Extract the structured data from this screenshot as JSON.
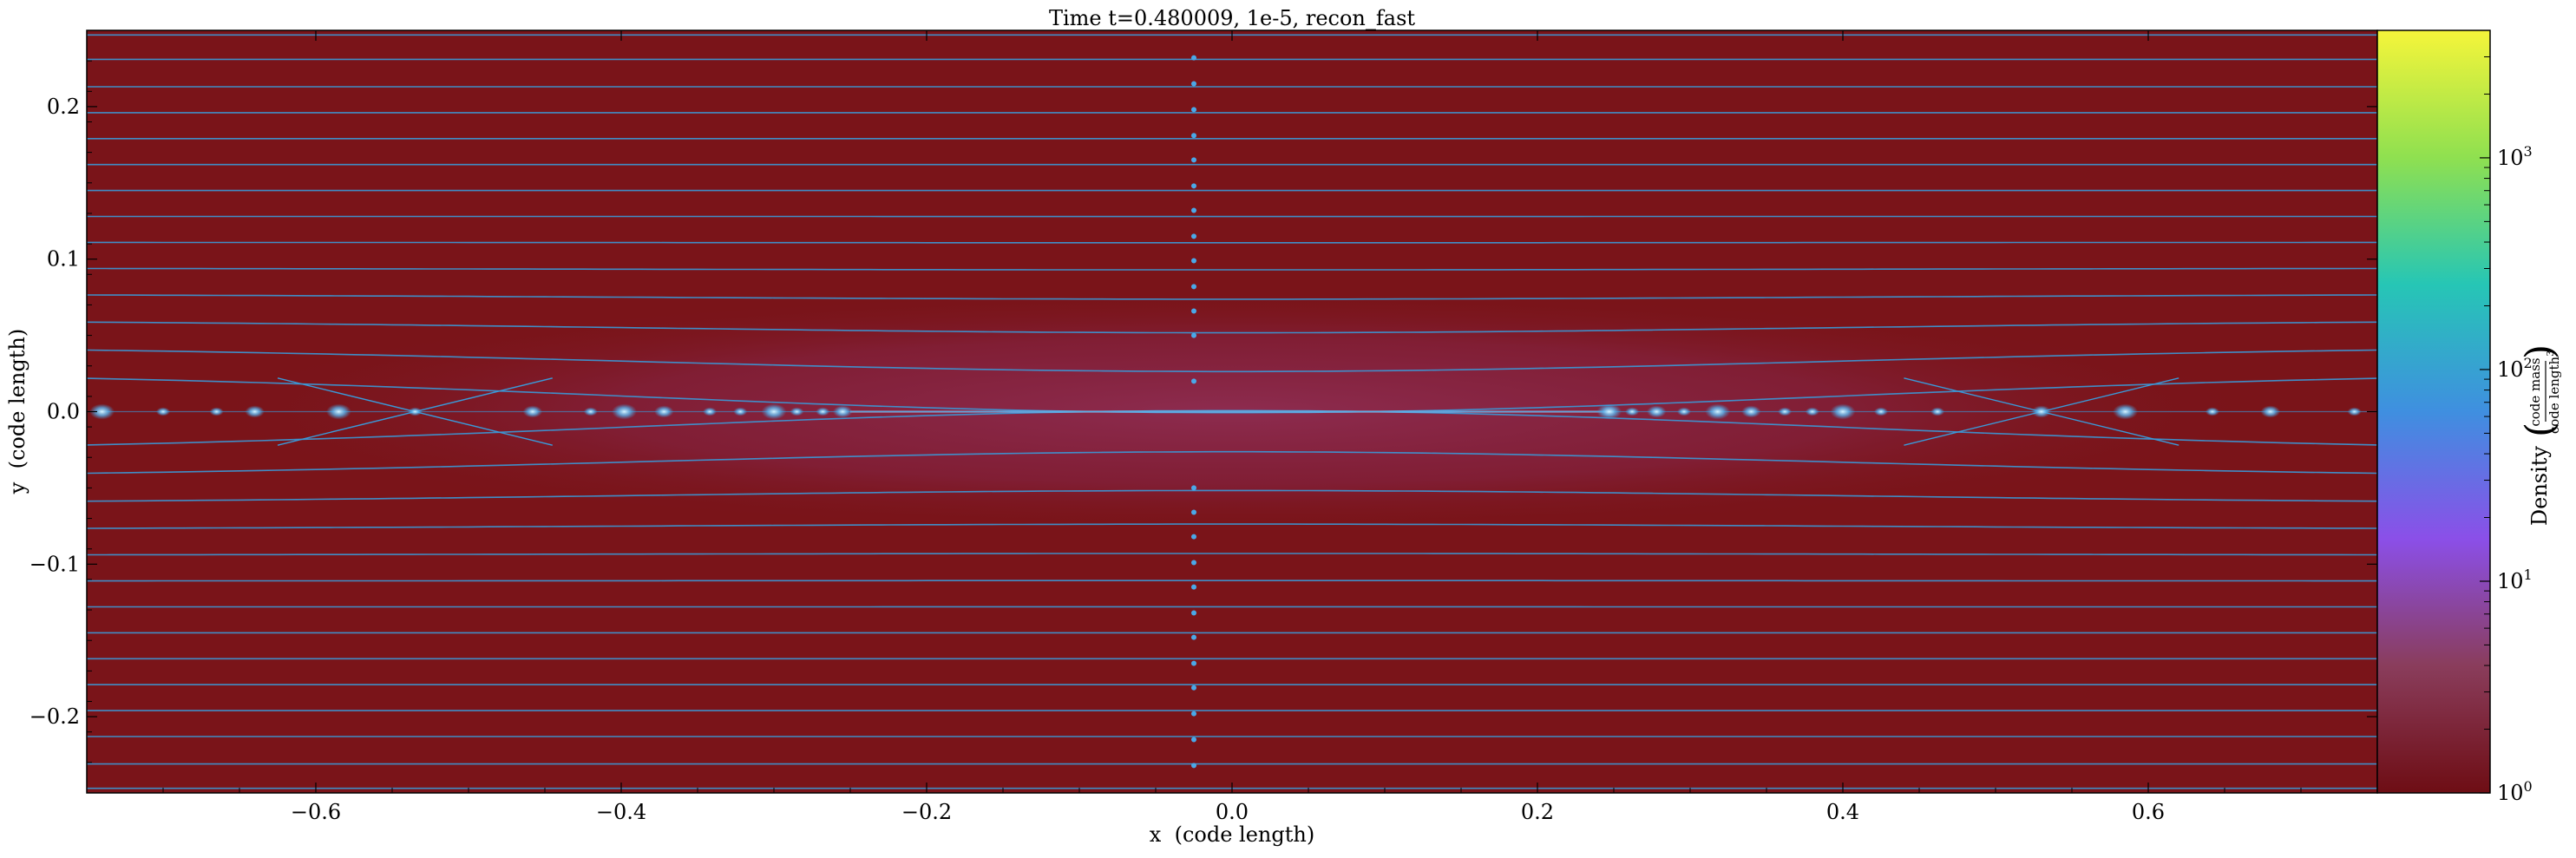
{
  "chart_data": {
    "type": "heatmap",
    "title": "Time t=0.480009, 1e-5, recon_fast",
    "xlabel": "x  (code length)",
    "ylabel": "y  (code length)",
    "xlim": [
      -0.75,
      0.75
    ],
    "ylim": [
      -0.25,
      0.25
    ],
    "xticks": [
      -0.6,
      -0.4,
      -0.2,
      0.0,
      0.2,
      0.4,
      0.6
    ],
    "xtick_labels": [
      "−0.6",
      "−0.4",
      "−0.2",
      "0.0",
      "0.2",
      "0.4",
      "0.6"
    ],
    "yticks": [
      -0.2,
      -0.1,
      0.0,
      0.1,
      0.2
    ],
    "ytick_labels": [
      "−0.2",
      "−0.1",
      "0.0",
      "0.1",
      "0.2"
    ],
    "colorbar": {
      "label": "Density",
      "unit_numerator": "code mass",
      "unit_denominator": "code length",
      "unit_exponent": "3",
      "scale": "log",
      "vmin": 1,
      "vmax": 4000,
      "ticks": [
        1,
        10,
        100,
        1000
      ],
      "tick_bases": [
        "10",
        "10",
        "10",
        "10"
      ],
      "tick_exponents": [
        "0",
        "1",
        "2",
        "3"
      ],
      "colormap": [
        "#6e0d14",
        "#8a3d5c",
        "#8b4fe8",
        "#3f8fe0",
        "#26c6b5",
        "#8fe050",
        "#f5f53a"
      ]
    },
    "background_color": "#7a1419",
    "current_sheet_color": "#8a2a4e",
    "streamline_color": "#3a9ad9",
    "streamlines_y": [
      -0.247,
      -0.231,
      -0.213,
      -0.196,
      -0.179,
      -0.162,
      -0.145,
      -0.128,
      -0.111,
      -0.094,
      -0.077,
      -0.06,
      -0.043,
      -0.026,
      0.026,
      0.043,
      0.06,
      0.077,
      0.094,
      0.111,
      0.128,
      0.145,
      0.162,
      0.179,
      0.196,
      0.213,
      0.231,
      0.247
    ],
    "plasmoids_x": [
      -0.74,
      -0.7,
      -0.665,
      -0.64,
      -0.585,
      -0.535,
      -0.458,
      -0.42,
      -0.398,
      -0.372,
      -0.342,
      -0.322,
      -0.3,
      -0.285,
      -0.268,
      -0.255,
      0.247,
      0.262,
      0.278,
      0.296,
      0.318,
      0.34,
      0.362,
      0.38,
      0.4,
      0.425,
      0.462,
      0.53,
      0.585,
      0.642,
      0.68,
      0.735
    ],
    "x_points_x": [
      -0.535,
      0.53
    ],
    "vertical_dots_x": -0.025,
    "vertical_dots_y": [
      0.232,
      0.215,
      0.198,
      0.181,
      0.165,
      0.148,
      0.132,
      0.115,
      0.099,
      0.082,
      0.066,
      0.05,
      0.02,
      -0.05,
      -0.066,
      -0.082,
      -0.099,
      -0.115,
      -0.132,
      -0.148,
      -0.165,
      -0.181,
      -0.198,
      -0.215,
      -0.232
    ]
  }
}
